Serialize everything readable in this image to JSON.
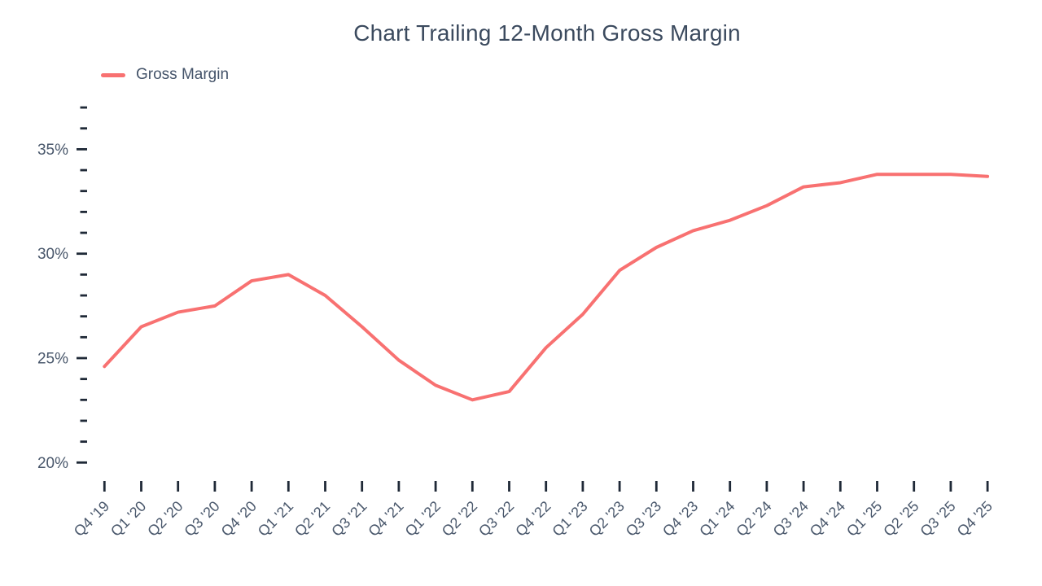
{
  "legend": {
    "items": [
      {
        "label": "Gross Margin",
        "color": "#f87171"
      }
    ],
    "position": "top-left"
  },
  "chart_data": {
    "type": "line",
    "title": "Chart Trailing 12-Month Gross Margin",
    "categories": [
      "Q4 '19",
      "Q1 '20",
      "Q2 '20",
      "Q3 '20",
      "Q4 '20",
      "Q1 '21",
      "Q2 '21",
      "Q3 '21",
      "Q4 '21",
      "Q1 '22",
      "Q2 '22",
      "Q3 '22",
      "Q4 '22",
      "Q1 '23",
      "Q2 '23",
      "Q3 '23",
      "Q4 '23",
      "Q1 '24",
      "Q2 '24",
      "Q3 '24",
      "Q4 '24",
      "Q1 '25",
      "Q2 '25",
      "Q3 '25",
      "Q4 '25"
    ],
    "series": [
      {
        "name": "Gross Margin",
        "color": "#f87171",
        "values": [
          24.6,
          26.5,
          27.2,
          27.5,
          28.7,
          29.0,
          28.0,
          26.5,
          24.9,
          23.7,
          23.0,
          23.4,
          25.5,
          27.1,
          29.2,
          30.3,
          31.1,
          31.6,
          32.3,
          33.2,
          33.4,
          33.8,
          33.8,
          33.8,
          33.7
        ]
      }
    ],
    "ylim": [
      20,
      37
    ],
    "yticks_major": [
      20,
      25,
      30,
      35
    ],
    "ytick_labels": [
      "20%",
      "25%",
      "30%",
      "35%"
    ],
    "ytick_minor_step": 1,
    "ytick_format": "percent",
    "grid": false,
    "legend_position": "top-left",
    "xlabel": "",
    "ylabel": ""
  }
}
